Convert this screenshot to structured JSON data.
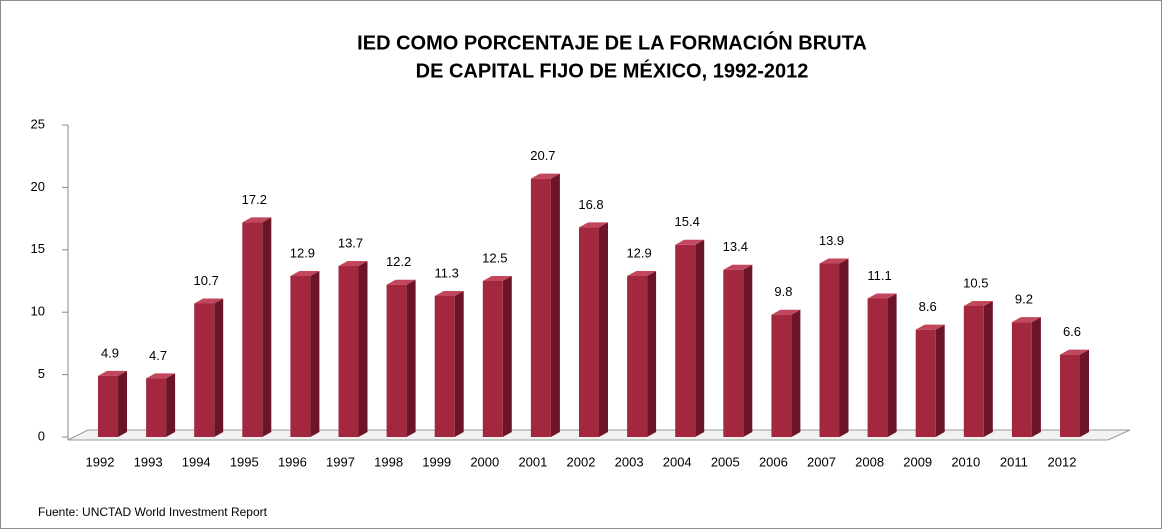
{
  "chart_data": {
    "type": "bar",
    "title": [
      "IED COMO PORCENTAJE DE LA FORMACIÓN BRUTA",
      "DE CAPITAL FIJO DE MÉXICO, 1992-2012"
    ],
    "categories": [
      "1992",
      "1993",
      "1994",
      "1995",
      "1996",
      "1997",
      "1998",
      "1999",
      "2000",
      "2001",
      "2002",
      "2003",
      "2004",
      "2005",
      "2006",
      "2007",
      "2008",
      "2009",
      "2010",
      "2011",
      "2012"
    ],
    "values": [
      4.9,
      4.7,
      10.7,
      17.2,
      12.9,
      13.7,
      12.2,
      11.3,
      12.5,
      20.7,
      16.8,
      12.9,
      15.4,
      13.4,
      9.8,
      13.9,
      11.1,
      8.6,
      10.5,
      9.2,
      6.6
    ],
    "color": "#a3283f",
    "ylim": [
      0,
      25
    ],
    "yticks": [
      0,
      5,
      10,
      15,
      20,
      25
    ],
    "source": "Fuente: UNCTAD World Investment Report"
  }
}
